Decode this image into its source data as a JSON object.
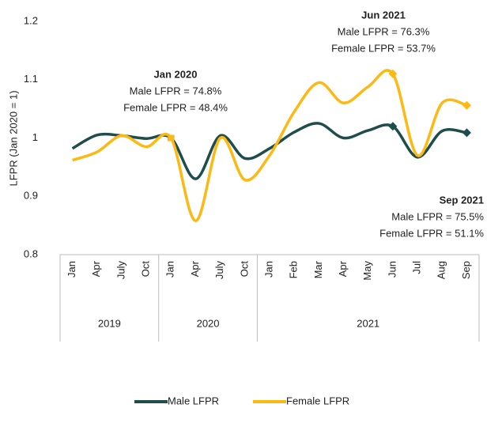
{
  "chart_data": {
    "type": "line",
    "y_label": "LFPR (Jan 2020 = 1)",
    "categories": [
      "Jan",
      "Apr",
      "July",
      "Oct",
      "Jan",
      "Apr",
      "July",
      "Oct",
      "Jan",
      "Feb",
      "Mar",
      "Apr",
      "May",
      "Jun",
      "Jul",
      "Aug",
      "Sep"
    ],
    "groups": [
      {
        "label": "2019",
        "span": 4
      },
      {
        "label": "2020",
        "span": 4
      },
      {
        "label": "2021",
        "span": 9
      }
    ],
    "series": [
      {
        "name": "Male LFPR",
        "color": "#1e4d4b",
        "values": [
          0.982,
          1.005,
          1.004,
          0.999,
          1,
          0.93,
          1.004,
          0.965,
          0.982,
          1.01,
          1.025,
          1.0,
          1.013,
          1.02,
          0.967,
          1.012,
          1.009
        ]
      },
      {
        "name": "Female LFPR",
        "color": "#fdb913",
        "values": [
          0.962,
          0.976,
          1.004,
          0.985,
          1,
          0.858,
          1.0,
          0.928,
          0.97,
          1.045,
          1.095,
          1.06,
          1.088,
          1.11,
          0.97,
          1.06,
          1.056
        ]
      }
    ],
    "ylim": [
      0.8,
      1.2
    ],
    "yticks": [
      0.8,
      0.9,
      1,
      1.1,
      1.2
    ],
    "grid": false,
    "legend": "bottom",
    "annotations": [
      {
        "title": "Jan 2020",
        "lines": [
          "Male LFPR = 74.8%",
          "Female LFPR = 48.4%"
        ]
      },
      {
        "title": "Jun 2021",
        "lines": [
          "Male LFPR = 76.3%",
          "Female LFPR = 53.7%"
        ]
      },
      {
        "title": "Sep 2021",
        "lines": [
          "Male LFPR = 75.5%",
          "Female LFPR = 51.1%"
        ]
      }
    ]
  }
}
